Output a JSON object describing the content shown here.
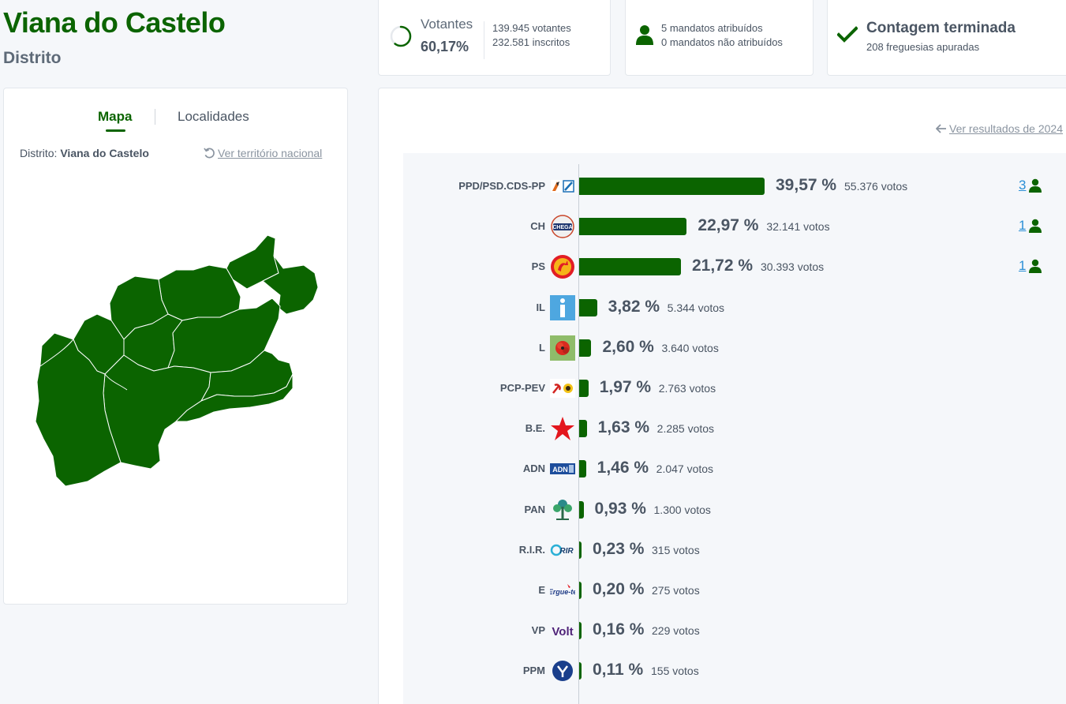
{
  "header": {
    "title": "Viana do Castelo",
    "subtitle": "Distrito"
  },
  "votantes": {
    "label": "Votantes",
    "percent": "60,17%",
    "percent_value": 0.6017,
    "votes_line": "139.945 votantes",
    "registered_line": "232.581 inscritos"
  },
  "mandatos": {
    "assigned": "5 mandatos atribuídos",
    "unassigned": "0 mandatos não atribuídos",
    "icon": "person-icon"
  },
  "contagem": {
    "title": "Contagem terminada",
    "subtitle": "208 freguesias apuradas",
    "icon": "check-icon"
  },
  "map_panel": {
    "tabs": [
      {
        "label": "Mapa",
        "active": true
      },
      {
        "label": "Localidades",
        "active": false
      }
    ],
    "district_label": "Distrito:",
    "district_name": "Viana do Castelo",
    "national_link": "Ver território nacional",
    "map_color": "#0b6400"
  },
  "results": {
    "previous_link": "Ver resultados de 2024",
    "accent": "#0b6400",
    "parties": [
      {
        "name": "PPD/PSD.CDS-PP",
        "pct": "39,57 %",
        "value": 39.57,
        "votes": "55.376 votos",
        "seats": "3",
        "logo": "ad-logo"
      },
      {
        "name": "CH",
        "pct": "22,97 %",
        "value": 22.97,
        "votes": "32.141 votos",
        "seats": "1",
        "logo": "chega-logo"
      },
      {
        "name": "PS",
        "pct": "21,72 %",
        "value": 21.72,
        "votes": "30.393 votos",
        "seats": "1",
        "logo": "ps-logo"
      },
      {
        "name": "IL",
        "pct": "3,82 %",
        "value": 3.82,
        "votes": "5.344 votos",
        "seats": null,
        "logo": "il-logo"
      },
      {
        "name": "L",
        "pct": "2,60 %",
        "value": 2.6,
        "votes": "3.640 votos",
        "seats": null,
        "logo": "livre-logo"
      },
      {
        "name": "PCP-PEV",
        "pct": "1,97 %",
        "value": 1.97,
        "votes": "2.763 votos",
        "seats": null,
        "logo": "cdu-logo"
      },
      {
        "name": "B.E.",
        "pct": "1,63 %",
        "value": 1.63,
        "votes": "2.285 votos",
        "seats": null,
        "logo": "be-logo"
      },
      {
        "name": "ADN",
        "pct": "1,46 %",
        "value": 1.46,
        "votes": "2.047 votos",
        "seats": null,
        "logo": "adn-logo"
      },
      {
        "name": "PAN",
        "pct": "0,93 %",
        "value": 0.93,
        "votes": "1.300 votos",
        "seats": null,
        "logo": "pan-logo"
      },
      {
        "name": "R.I.R.",
        "pct": "0,23 %",
        "value": 0.23,
        "votes": "315 votos",
        "seats": null,
        "logo": "rir-logo"
      },
      {
        "name": "E",
        "pct": "0,20 %",
        "value": 0.2,
        "votes": "275 votos",
        "seats": null,
        "logo": "ergue-te-logo"
      },
      {
        "name": "VP",
        "pct": "0,16 %",
        "value": 0.16,
        "votes": "229 votos",
        "seats": null,
        "logo": "volt-logo"
      },
      {
        "name": "PPM",
        "pct": "0,11 %",
        "value": 0.11,
        "votes": "155 votos",
        "seats": null,
        "logo": "ppm-logo"
      }
    ]
  }
}
